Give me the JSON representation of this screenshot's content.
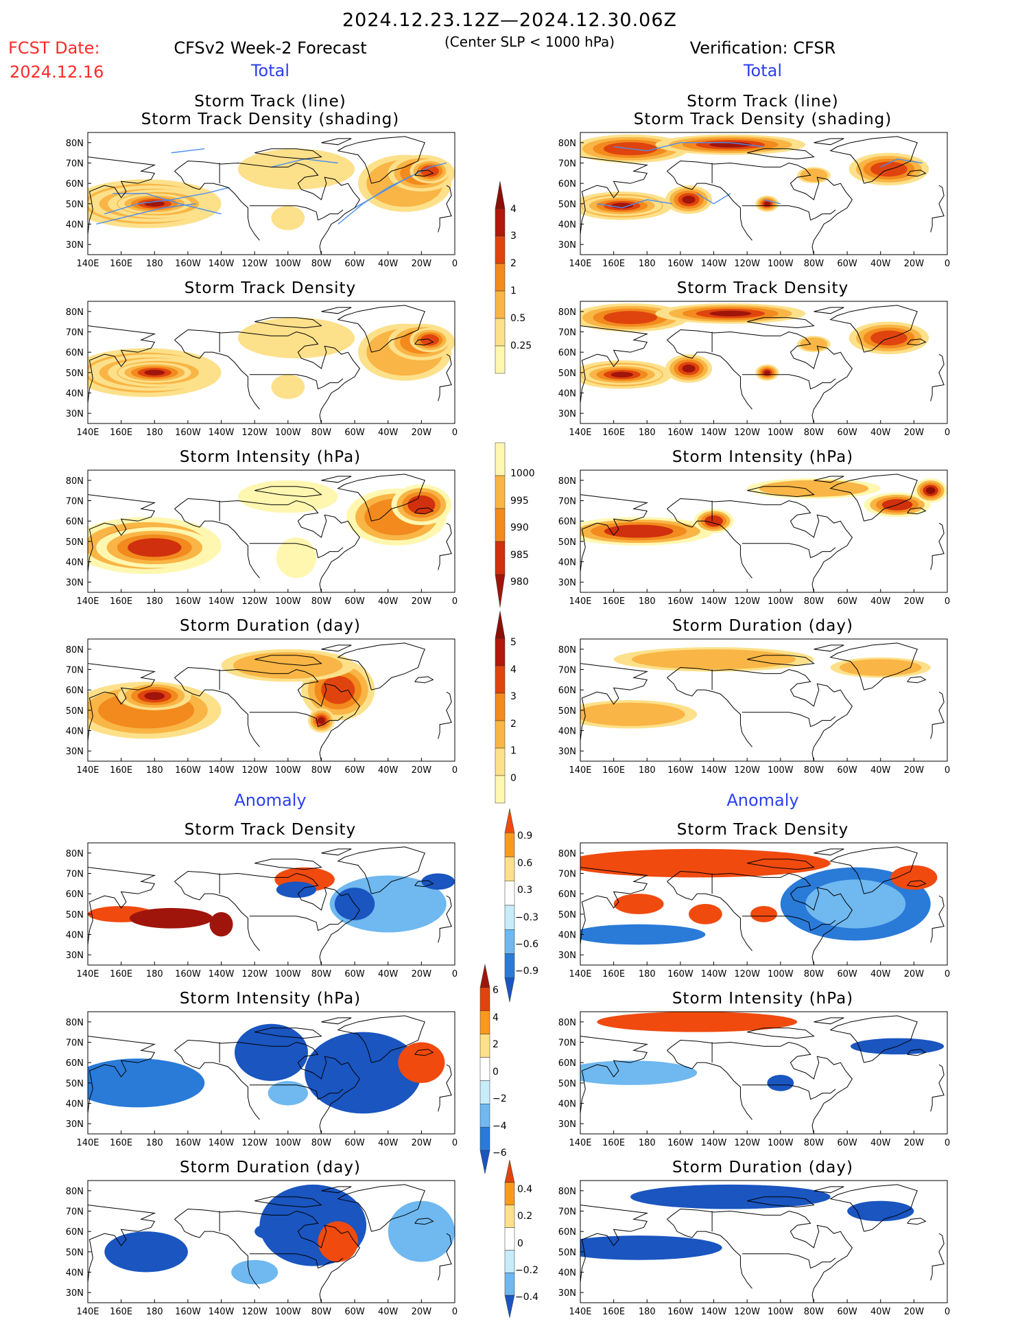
{
  "header": {
    "period": "2024.12.23.12Z—2024.12.30.06Z",
    "criterion": "(Center SLP < 1000 hPa)",
    "fcst_label": "FCST Date:",
    "fcst_date": "2024.12.16",
    "left_title": "CFSv2 Week-2 Forecast",
    "right_title": "Verification: CFSR"
  },
  "sections": {
    "total": "Total",
    "anomaly": "Anomaly"
  },
  "panel_titles": {
    "track_line": "Storm Track (line)",
    "track_shading": "Storm Track Density (shading)",
    "density": "Storm Track Density",
    "intensity": "Storm Intensity (hPa)",
    "duration": "Storm Duration (day)"
  },
  "axes": {
    "lon_labels": [
      "140E",
      "160E",
      "180",
      "160W",
      "140W",
      "120W",
      "100W",
      "80W",
      "60W",
      "40W",
      "20W",
      "0"
    ],
    "lat_labels": [
      "80N",
      "70N",
      "60N",
      "50N",
      "40N",
      "30N"
    ]
  },
  "colorbars": {
    "density_total": {
      "labels": [
        "0.25",
        "0.5",
        "1",
        "2",
        "3",
        "4"
      ],
      "colors": [
        "#fff7b0",
        "#fde08a",
        "#f9b545",
        "#f28a1e",
        "#e0440e",
        "#b0180b",
        "#8a0f07"
      ]
    },
    "intensity_total": {
      "labels": [
        "1000",
        "995",
        "990",
        "985",
        "980"
      ],
      "colors": [
        "#fff7b0",
        "#f9b545",
        "#f28a1e",
        "#d0300d",
        "#a0150b"
      ]
    },
    "duration_total": {
      "labels": [
        "0",
        "1",
        "2",
        "3",
        "4",
        "5"
      ],
      "colors": [
        "#fff7b0",
        "#fde08a",
        "#f9b545",
        "#f28a1e",
        "#e0440e",
        "#b0180b",
        "#8a0f07"
      ]
    },
    "density_anom": {
      "labels": [
        "0.9",
        "0.6",
        "0.3",
        "−0.3",
        "−0.6",
        "−0.9"
      ],
      "colors": [
        "#f04a0f",
        "#f99a1e",
        "#fde08a",
        "#ffffff",
        "#c8ecf8",
        "#6fb8f0",
        "#2a7ad8",
        "#1a55c0"
      ]
    },
    "intensity_anom": {
      "labels": [
        "6",
        "4",
        "2",
        "0",
        "−2",
        "−4",
        "−6"
      ],
      "colors": [
        "#a0150b",
        "#e0440e",
        "#f99a1e",
        "#fde08a",
        "#ffffff",
        "#c8ecf8",
        "#6fb8f0",
        "#2a7ad8",
        "#1a55c0"
      ]
    },
    "duration_anom": {
      "labels": [
        "0.4",
        "0.2",
        "0",
        "−0.2",
        "−0.4"
      ],
      "colors": [
        "#e0440e",
        "#f99a1e",
        "#fde08a",
        "#ffffff",
        "#c8ecf8",
        "#6fb8f0",
        "#1a55c0"
      ]
    }
  },
  "colors": {
    "red_label": "#ff2a2a",
    "blue_label": "#2a3ff0",
    "track_line": "#4a8ef0"
  },
  "chart_data": [
    {
      "type": "heatmap",
      "title": "Storm Track (line) / Storm Track Density (shading)",
      "column": "CFSv2 Week-2 Forecast",
      "section": "Total",
      "features": [
        {
          "lon_range": [
            "150E",
            "130W"
          ],
          "lat_range": [
            "40N",
            "60N"
          ],
          "max_level": ">4"
        },
        {
          "lon_range": [
            "50W",
            "0"
          ],
          "lat_range": [
            "45N",
            "75N"
          ],
          "max_level": "3-4"
        }
      ]
    },
    {
      "type": "heatmap",
      "title": "Storm Track (line) / Storm Track Density (shading)",
      "column": "Verification: CFSR",
      "section": "Total",
      "features": [
        {
          "lon_range": [
            "140E",
            "120W"
          ],
          "lat_range": [
            "45N",
            "60N"
          ],
          "max_level": ">4"
        },
        {
          "lon_range": [
            "140E",
            "0"
          ],
          "lat_range": [
            "70N",
            "85N"
          ],
          "max_level": ">4"
        }
      ]
    },
    {
      "type": "heatmap",
      "title": "Storm Track Density",
      "column": "CFSv2 Week-2 Forecast",
      "section": "Total"
    },
    {
      "type": "heatmap",
      "title": "Storm Track Density",
      "column": "Verification: CFSR",
      "section": "Total"
    },
    {
      "type": "heatmap",
      "title": "Storm Intensity (hPa)",
      "column": "CFSv2 Week-2 Forecast",
      "section": "Total",
      "scale": [
        1000,
        995,
        990,
        985,
        980
      ]
    },
    {
      "type": "heatmap",
      "title": "Storm Intensity (hPa)",
      "column": "Verification: CFSR",
      "section": "Total",
      "scale": [
        1000,
        995,
        990,
        985,
        980
      ]
    },
    {
      "type": "heatmap",
      "title": "Storm Duration (day)",
      "column": "CFSv2 Week-2 Forecast",
      "section": "Total",
      "scale": [
        0,
        1,
        2,
        3,
        4,
        5
      ]
    },
    {
      "type": "heatmap",
      "title": "Storm Duration (day)",
      "column": "Verification: CFSR",
      "section": "Total",
      "scale": [
        0,
        1,
        2,
        3,
        4,
        5
      ]
    },
    {
      "type": "heatmap",
      "title": "Storm Track Density",
      "column": "CFSv2 Week-2 Forecast",
      "section": "Anomaly",
      "scale": [
        -0.9,
        -0.6,
        -0.3,
        0.3,
        0.6,
        0.9
      ]
    },
    {
      "type": "heatmap",
      "title": "Storm Track Density",
      "column": "Verification: CFSR",
      "section": "Anomaly",
      "scale": [
        -0.9,
        -0.6,
        -0.3,
        0.3,
        0.6,
        0.9
      ]
    },
    {
      "type": "heatmap",
      "title": "Storm Intensity (hPa)",
      "column": "CFSv2 Week-2 Forecast",
      "section": "Anomaly",
      "scale": [
        -6,
        -4,
        -2,
        0,
        2,
        4,
        6
      ]
    },
    {
      "type": "heatmap",
      "title": "Storm Intensity (hPa)",
      "column": "Verification: CFSR",
      "section": "Anomaly",
      "scale": [
        -6,
        -4,
        -2,
        0,
        2,
        4,
        6
      ]
    },
    {
      "type": "heatmap",
      "title": "Storm Duration (day)",
      "column": "CFSv2 Week-2 Forecast",
      "section": "Anomaly",
      "scale": [
        -0.4,
        -0.2,
        0,
        0.2,
        0.4
      ]
    },
    {
      "type": "heatmap",
      "title": "Storm Duration (day)",
      "column": "Verification: CFSR",
      "section": "Anomaly",
      "scale": [
        -0.4,
        -0.2,
        0,
        0.2,
        0.4
      ]
    }
  ]
}
